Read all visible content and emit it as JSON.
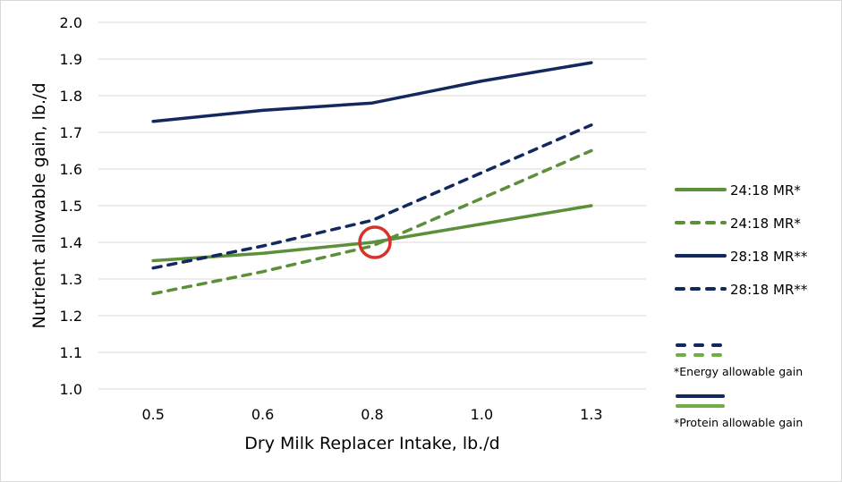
{
  "chart_data": {
    "type": "line",
    "title": "",
    "xlabel": "Dry Milk Replacer Intake, lb./d",
    "ylabel": "Nutrient allowable gain, lb./d",
    "categories": [
      "0.5",
      "0.6",
      "0.8",
      "1.0",
      "1.3"
    ],
    "ylim": [
      1.0,
      2.0
    ],
    "yticks": [
      "1.0",
      "1.1",
      "1.2",
      "1.3",
      "1.4",
      "1.5",
      "1.6",
      "1.7",
      "1.8",
      "1.9",
      "2.0"
    ],
    "grid": true,
    "legend_placement": "right",
    "series": [
      {
        "name": "24:18 MR*",
        "style": "solid",
        "color": "#5b8f3a",
        "values": [
          1.35,
          1.37,
          1.4,
          1.45,
          1.5
        ]
      },
      {
        "name": "24:18 MR*",
        "style": "dashed",
        "color": "#5b8f3a",
        "values": [
          1.26,
          1.32,
          1.39,
          1.52,
          1.65
        ]
      },
      {
        "name": "28:18 MR**",
        "style": "solid",
        "color": "#13295e",
        "values": [
          1.73,
          1.76,
          1.78,
          1.84,
          1.89
        ]
      },
      {
        "name": "28:18 MR**",
        "style": "dashed",
        "color": "#13295e",
        "values": [
          1.33,
          1.39,
          1.46,
          1.59,
          1.72
        ]
      }
    ],
    "annotations": [
      {
        "type": "circle",
        "color": "#d9312b",
        "x": "0.8",
        "y": 1.4
      }
    ],
    "notes": [
      {
        "text": "*Energy allowable gain",
        "style": "dashed",
        "colors": [
          "#13295e",
          "#70ad47"
        ]
      },
      {
        "text": "*Protein allowable gain",
        "style": "solid",
        "colors": [
          "#13295e",
          "#70ad47"
        ]
      }
    ]
  }
}
